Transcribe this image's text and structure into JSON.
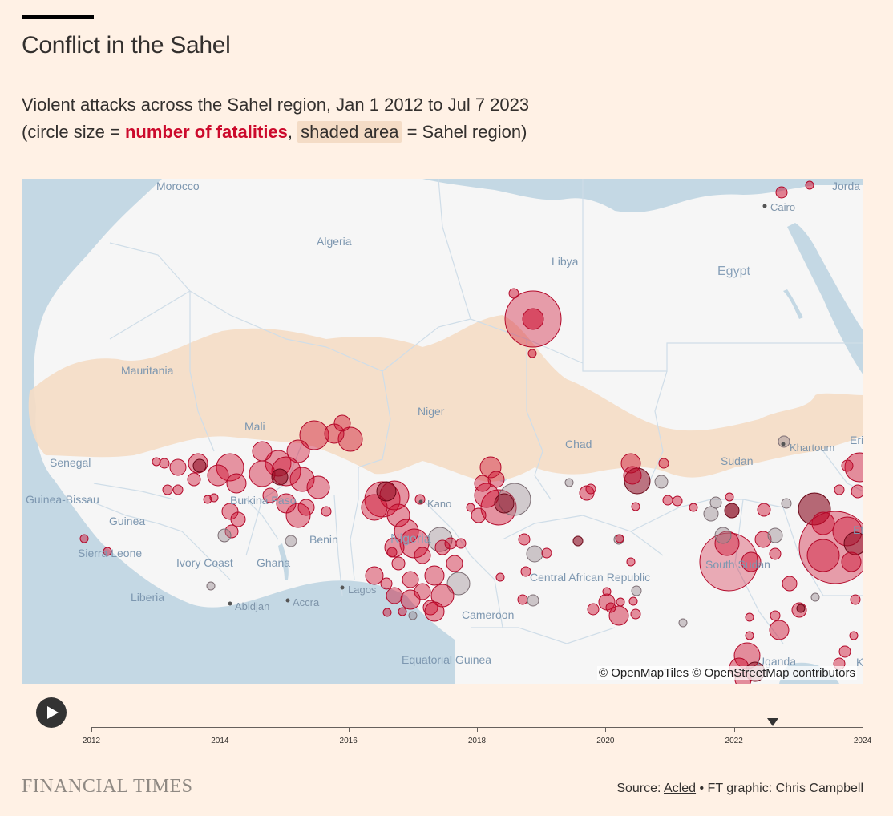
{
  "header": {
    "title": "Conflict in the Sahel",
    "subtitle_line1": "Violent attacks across the Sahel region, Jan 1 2012 to Jul 7 2023",
    "subtitle_open": "(circle size = ",
    "subtitle_fatalities": "number of fatalities",
    "subtitle_comma": ",",
    "subtitle_shaded": "shaded area",
    "subtitle_close": " = Sahel region)"
  },
  "colors": {
    "background": "#fff1e5",
    "fatality": "#cc0a2c",
    "sahel": "#f4dcc6",
    "water": "#c4d8e4"
  },
  "map": {
    "attribution": "© OpenMapTiles © OpenStreetMap contributors",
    "labels": {
      "morocco": "Morocco",
      "algeria": "Algeria",
      "libya": "Libya",
      "egypt": "Egypt",
      "jordan": "Jorda",
      "cairo": "Cairo",
      "mauritania": "Mauritania",
      "mali": "Mali",
      "niger": "Niger",
      "chad": "Chad",
      "sudan": "Sudan",
      "khartoum": "Khartoum",
      "eritrea": "Eri",
      "senegal": "Senegal",
      "guinea_bissau": "Guinea-Bissau",
      "guinea": "Guinea",
      "sierra_leone": "Sierra Leone",
      "liberia": "Liberia",
      "ivory_coast": "Ivory Coast",
      "ghana": "Ghana",
      "burkina_faso": "Burkina Faso",
      "benin": "Benin",
      "nigeria": "Nigeria",
      "kano": "Kano",
      "abidjan": "Abidjan",
      "accra": "Accra",
      "lagos": "Lagos",
      "cameroon": "Cameroon",
      "car": "Central African Republic",
      "south_sudan": "South Sudan",
      "equatorial_guinea": "Equatorial Guinea",
      "uganda": "Uganda",
      "ethiopia": "Et",
      "kenya": "K"
    }
  },
  "timeline": {
    "play_icon": "play-icon",
    "years": [
      "2012",
      "2014",
      "2016",
      "2018",
      "2020",
      "2022",
      "2024"
    ],
    "current_year": 2022.6
  },
  "footer": {
    "logo": "FINANCIAL TIMES",
    "source_prefix": "Source: ",
    "source_link": "Acled",
    "credit": " • FT graphic: Chris Campbell"
  }
}
